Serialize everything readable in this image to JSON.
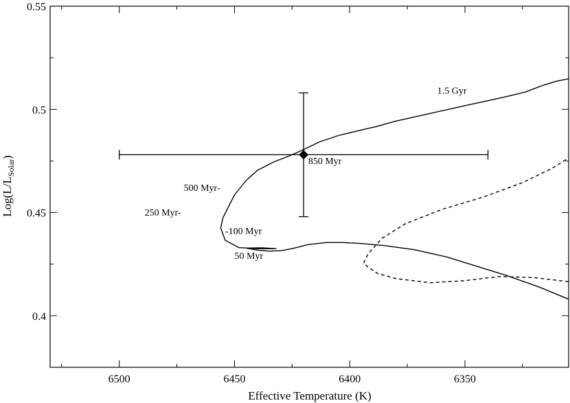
{
  "chart_data": {
    "type": "line",
    "xlabel": "Effective Temperature (K)",
    "ylabel_main": "Log(L/L",
    "ylabel_sub": "Solar",
    "ylabel_close": ")",
    "xlim": [
      6530,
      6305
    ],
    "ylim": [
      0.375,
      0.55
    ],
    "x_axis_reversed": true,
    "xticks": [
      6500,
      6450,
      6400,
      6350
    ],
    "xtick_labels": [
      "6500",
      "6450",
      "6400",
      "6350"
    ],
    "yticks": [
      0.4,
      0.45,
      0.5,
      0.55
    ],
    "ytick_labels": [
      "0.4",
      "0.45",
      "0.5",
      "0.55"
    ],
    "grid": false,
    "series": [
      {
        "style": "solid",
        "x": [
          6305,
          6318,
          6332,
          6345,
          6358,
          6372,
          6385,
          6395,
          6403,
          6410,
          6418,
          6425,
          6430,
          6435,
          6440,
          6445,
          6438,
          6432,
          6440,
          6448,
          6454,
          6456,
          6455,
          6450,
          6445,
          6440,
          6433,
          6426,
          6420,
          6413,
          6405,
          6396,
          6388,
          6380,
          6372,
          6364,
          6356,
          6348,
          6340,
          6332,
          6324,
          6316,
          6310,
          6305
        ],
        "y": [
          0.408,
          0.414,
          0.4195,
          0.424,
          0.4285,
          0.432,
          0.434,
          0.435,
          0.4355,
          0.4355,
          0.4345,
          0.4325,
          0.4315,
          0.4313,
          0.4318,
          0.4328,
          0.4329,
          0.4325,
          0.4325,
          0.433,
          0.4365,
          0.4425,
          0.4475,
          0.4585,
          0.4655,
          0.4705,
          0.4745,
          0.4775,
          0.4805,
          0.4843,
          0.4873,
          0.4897,
          0.4918,
          0.4943,
          0.4963,
          0.4983,
          0.5003,
          0.5023,
          0.5042,
          0.5062,
          0.5083,
          0.5117,
          0.5137,
          0.5148
        ]
      },
      {
        "style": "dashed",
        "x": [
          6305,
          6320,
          6335,
          6350,
          6365,
          6380,
          6388,
          6392,
          6394,
          6392,
          6386,
          6376,
          6360,
          6342,
          6325,
          6312,
          6305
        ],
        "y": [
          0.4165,
          0.4185,
          0.419,
          0.417,
          0.416,
          0.418,
          0.4205,
          0.4235,
          0.4255,
          0.43,
          0.4375,
          0.4445,
          0.4515,
          0.4575,
          0.4645,
          0.4715,
          0.4765
        ]
      }
    ],
    "error_point": {
      "x": 6420,
      "y": 0.478,
      "xerr": [
        6500,
        6340
      ],
      "yerr": [
        0.448,
        0.508
      ]
    },
    "annotations": [
      {
        "text": "1.5 Gyr",
        "x": 6362,
        "y": 0.5075
      },
      {
        "text": "850 Myr",
        "x": 6418,
        "y": 0.4735
      },
      {
        "text": "500 Myr-",
        "x": 6472,
        "y": 0.4605
      },
      {
        "text": "250 Myr-",
        "x": 6489,
        "y": 0.4485
      },
      {
        "text": "-100 Myr",
        "x": 6454,
        "y": 0.4395
      },
      {
        "text": "50 Myr",
        "x": 6450,
        "y": 0.4275
      }
    ]
  }
}
